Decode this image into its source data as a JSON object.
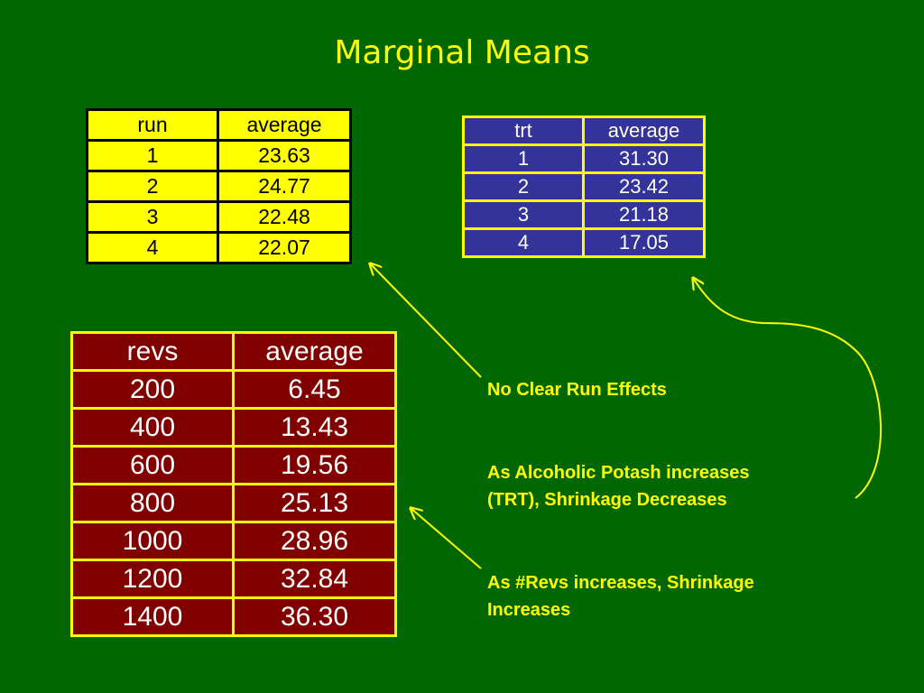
{
  "title": "Marginal Means",
  "run_table": {
    "headers": [
      "run",
      "average"
    ],
    "rows": [
      [
        "1",
        "23.63"
      ],
      [
        "2",
        "24.77"
      ],
      [
        "3",
        "22.48"
      ],
      [
        "4",
        "22.07"
      ]
    ]
  },
  "trt_table": {
    "headers": [
      "trt",
      "average"
    ],
    "rows": [
      [
        "1",
        "31.30"
      ],
      [
        "2",
        "23.42"
      ],
      [
        "3",
        "21.18"
      ],
      [
        "4",
        "17.05"
      ]
    ]
  },
  "revs_table": {
    "headers": [
      "revs",
      "average"
    ],
    "rows": [
      [
        "200",
        "6.45"
      ],
      [
        "400",
        "13.43"
      ],
      [
        "600",
        "19.56"
      ],
      [
        "800",
        "25.13"
      ],
      [
        "1000",
        "28.96"
      ],
      [
        "1200",
        "32.84"
      ],
      [
        "1400",
        "36.30"
      ]
    ]
  },
  "notes": {
    "run": [
      "No Clear Run Effects"
    ],
    "trt": [
      "As Alcoholic Potash increases",
      "(TRT), Shrinkage Decreases"
    ],
    "revs": [
      "As #Revs increases, Shrinkage",
      "Increases"
    ]
  },
  "colors": {
    "background": "#006600",
    "accent": "#ffff00",
    "run_table_fill": "#ffff00",
    "trt_table_fill": "#333399",
    "revs_table_fill": "#800000"
  }
}
